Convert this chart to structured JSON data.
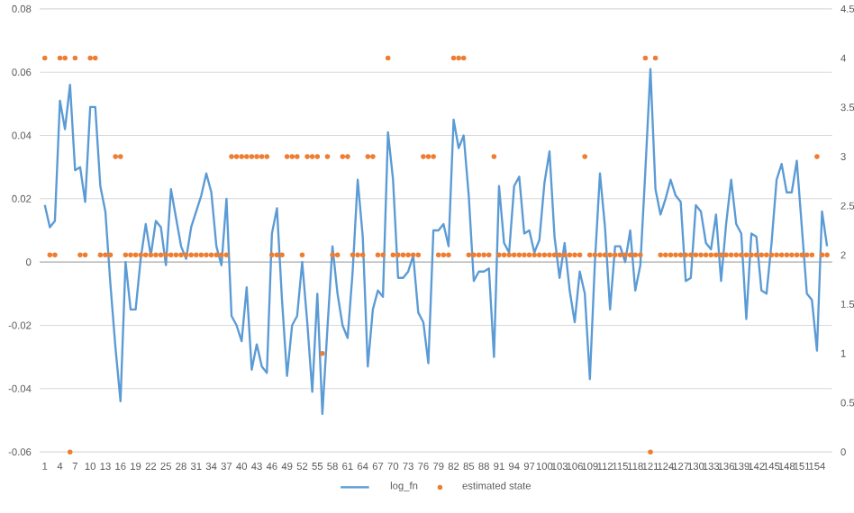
{
  "chart_data": {
    "type": "line",
    "x": [
      1,
      2,
      3,
      4,
      5,
      6,
      7,
      8,
      9,
      10,
      11,
      12,
      13,
      14,
      15,
      16,
      17,
      18,
      19,
      20,
      21,
      22,
      23,
      24,
      25,
      26,
      27,
      28,
      29,
      30,
      31,
      32,
      33,
      34,
      35,
      36,
      37,
      38,
      39,
      40,
      41,
      42,
      43,
      44,
      45,
      46,
      47,
      48,
      49,
      50,
      51,
      52,
      53,
      54,
      55,
      56,
      57,
      58,
      59,
      60,
      61,
      62,
      63,
      64,
      65,
      66,
      67,
      68,
      69,
      70,
      71,
      72,
      73,
      74,
      75,
      76,
      77,
      78,
      79,
      80,
      81,
      82,
      83,
      84,
      85,
      86,
      87,
      88,
      89,
      90,
      91,
      92,
      93,
      94,
      95,
      96,
      97,
      98,
      99,
      100,
      101,
      102,
      103,
      104,
      105,
      106,
      107,
      108,
      109,
      110,
      111,
      112,
      113,
      114,
      115,
      116,
      117,
      118,
      119,
      120,
      121,
      122,
      123,
      124,
      125,
      126,
      127,
      128,
      129,
      130,
      131,
      132,
      133,
      134,
      135,
      136,
      137,
      138,
      139,
      140,
      141,
      142,
      143,
      144,
      145,
      146,
      147,
      148,
      149,
      150,
      151,
      152,
      153,
      154,
      155,
      156
    ],
    "xlim": [
      0,
      157
    ],
    "xticks": [
      1,
      4,
      7,
      10,
      13,
      16,
      19,
      22,
      25,
      28,
      31,
      34,
      37,
      40,
      43,
      46,
      49,
      52,
      55,
      58,
      61,
      64,
      67,
      70,
      73,
      76,
      79,
      82,
      85,
      88,
      91,
      94,
      97,
      100,
      103,
      106,
      109,
      112,
      115,
      118,
      121,
      124,
      127,
      130,
      133,
      136,
      139,
      142,
      145,
      148,
      151,
      154
    ],
    "ylim": [
      -0.06,
      0.08
    ],
    "yticks": [
      -0.06,
      -0.04,
      -0.02,
      0,
      0.02,
      0.04,
      0.06,
      0.08
    ],
    "y2lim": [
      0,
      4.5
    ],
    "y2ticks": [
      0,
      0.5,
      1,
      1.5,
      2,
      2.5,
      3,
      3.5,
      4,
      4.5
    ],
    "grid": "y",
    "legend": "bottom",
    "series": [
      {
        "name": "log_fn",
        "color": "#5b9bd5",
        "marker": "none",
        "values": [
          0.018,
          0.011,
          0.013,
          0.051,
          0.042,
          0.056,
          0.029,
          0.03,
          0.019,
          0.049,
          0.049,
          0.024,
          0.016,
          -0.007,
          -0.027,
          -0.044,
          0.0,
          -0.015,
          -0.015,
          0.001,
          0.012,
          0.002,
          0.013,
          0.011,
          -0.001,
          0.023,
          0.014,
          0.005,
          0.001,
          0.011,
          0.016,
          0.021,
          0.028,
          0.022,
          0.005,
          -0.001,
          0.02,
          -0.017,
          -0.02,
          -0.025,
          -0.008,
          -0.034,
          -0.026,
          -0.033,
          -0.035,
          0.009,
          0.017,
          -0.012,
          -0.036,
          -0.02,
          -0.017,
          0.0,
          -0.019,
          -0.041,
          -0.01,
          -0.048,
          -0.021,
          0.005,
          -0.01,
          -0.02,
          -0.024,
          -0.003,
          0.026,
          0.008,
          -0.033,
          -0.015,
          -0.009,
          -0.011,
          0.041,
          0.026,
          -0.005,
          -0.005,
          -0.003,
          0.002,
          -0.016,
          -0.019,
          -0.032,
          0.01,
          0.01,
          0.012,
          0.005,
          0.045,
          0.036,
          0.04,
          0.021,
          -0.006,
          -0.003,
          -0.003,
          -0.002,
          -0.03,
          0.024,
          0.006,
          0.003,
          0.024,
          0.027,
          0.009,
          0.01,
          0.003,
          0.007,
          0.025,
          0.035,
          0.008,
          -0.005,
          0.006,
          -0.009,
          -0.019,
          -0.003,
          -0.01,
          -0.037,
          0.0,
          0.028,
          0.011,
          -0.015,
          0.005,
          0.005,
          0.0,
          0.01,
          -0.009,
          -0.001,
          0.029,
          0.061,
          0.023,
          0.015,
          0.02,
          0.026,
          0.021,
          0.019,
          -0.006,
          -0.005,
          0.018,
          0.016,
          0.006,
          0.004,
          0.015,
          -0.006,
          0.012,
          0.026,
          0.012,
          0.009,
          -0.018,
          0.009,
          0.008,
          -0.009,
          -0.01,
          0.006,
          0.026,
          0.031,
          0.022,
          0.022,
          0.032,
          0.011,
          -0.01,
          -0.012,
          -0.028,
          0.016,
          0.005
        ]
      },
      {
        "name": "estimated state",
        "type": "scatter",
        "axis": "y2",
        "color": "#ed7d31",
        "marker": "circle",
        "values": [
          4,
          2,
          2,
          4,
          4,
          0,
          4,
          2,
          2,
          4,
          4,
          2,
          2,
          2,
          3,
          3,
          2,
          2,
          2,
          2,
          2,
          2,
          2,
          2,
          2,
          2,
          2,
          2,
          2,
          2,
          2,
          2,
          2,
          2,
          2,
          2,
          2,
          3,
          3,
          3,
          3,
          3,
          3,
          3,
          3,
          2,
          2,
          2,
          3,
          3,
          3,
          2,
          3,
          3,
          3,
          1,
          3,
          2,
          2,
          3,
          3,
          2,
          2,
          2,
          3,
          3,
          2,
          2,
          4,
          2,
          2,
          2,
          2,
          2,
          2,
          3,
          3,
          3,
          2,
          2,
          2,
          4,
          4,
          4,
          2,
          2,
          2,
          2,
          2,
          3,
          2,
          2,
          2,
          2,
          2,
          2,
          2,
          2,
          2,
          2,
          2,
          2,
          2,
          2,
          2,
          2,
          2,
          3,
          2,
          2,
          2,
          2,
          2,
          2,
          2,
          2,
          2,
          2,
          2,
          4,
          0,
          4,
          2,
          2,
          2,
          2,
          2,
          2,
          2,
          2,
          2,
          2,
          2,
          2,
          2,
          2,
          2,
          2,
          2,
          2,
          2,
          2,
          2,
          2,
          2,
          2,
          2,
          2,
          2,
          2,
          2,
          2,
          2,
          3,
          2,
          2
        ]
      }
    ]
  }
}
